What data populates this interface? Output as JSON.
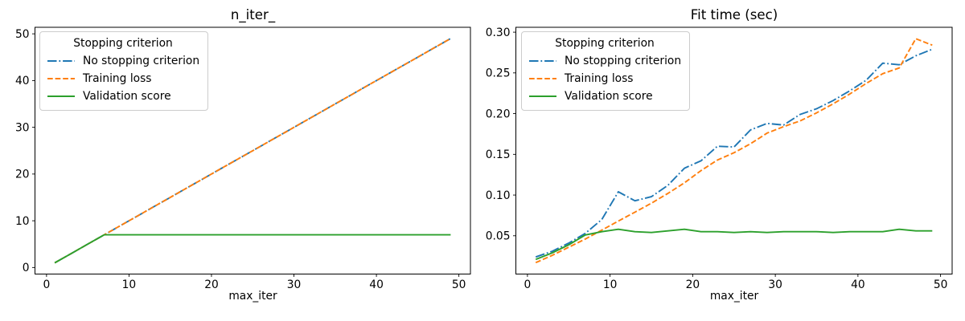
{
  "chart_data": [
    {
      "type": "line",
      "title": "n_iter_",
      "xlabel": "max_iter",
      "ylabel": "",
      "legend_title": "Stopping criterion",
      "legend_position": "upper left",
      "grid": false,
      "xlim": [
        -1.4,
        51.4
      ],
      "ylim": [
        -1.4,
        51.4
      ],
      "xticks": [
        0,
        10,
        20,
        30,
        40,
        50
      ],
      "xtick_labels": [
        "0",
        "10",
        "20",
        "30",
        "40",
        "50"
      ],
      "yticks": [
        0,
        10,
        20,
        30,
        40,
        50
      ],
      "ytick_labels": [
        "0",
        "10",
        "20",
        "30",
        "40",
        "50"
      ],
      "x": [
        1,
        3,
        5,
        7,
        9,
        11,
        13,
        15,
        17,
        19,
        21,
        23,
        25,
        27,
        29,
        31,
        33,
        35,
        37,
        39,
        41,
        43,
        45,
        47,
        49
      ],
      "series": [
        {
          "name": "No stopping criterion",
          "color": "#1f77b4",
          "linestyle": "dashdot",
          "values": [
            1,
            3,
            5,
            7,
            9,
            11,
            13,
            15,
            17,
            19,
            21,
            23,
            25,
            27,
            29,
            31,
            33,
            35,
            37,
            39,
            41,
            43,
            45,
            47,
            49
          ]
        },
        {
          "name": "Training loss",
          "color": "#ff7f0e",
          "linestyle": "dashed",
          "values": [
            1,
            3,
            5,
            7,
            9,
            11,
            13,
            15,
            17,
            19,
            21,
            23,
            25,
            27,
            29,
            31,
            33,
            35,
            37,
            39,
            41,
            43,
            45,
            47,
            49
          ]
        },
        {
          "name": "Validation score",
          "color": "#2ca02c",
          "linestyle": "solid",
          "values": [
            1,
            3,
            5,
            7,
            7,
            7,
            7,
            7,
            7,
            7,
            7,
            7,
            7,
            7,
            7,
            7,
            7,
            7,
            7,
            7,
            7,
            7,
            7,
            7,
            7
          ]
        }
      ]
    },
    {
      "type": "line",
      "title": "Fit time (sec)",
      "xlabel": "max_iter",
      "ylabel": "",
      "legend_title": "Stopping criterion",
      "legend_position": "upper left",
      "grid": false,
      "xlim": [
        -1.4,
        51.4
      ],
      "ylim": [
        0.003,
        0.306
      ],
      "xticks": [
        0,
        10,
        20,
        30,
        40,
        50
      ],
      "xtick_labels": [
        "0",
        "10",
        "20",
        "30",
        "40",
        "50"
      ],
      "yticks": [
        0.05,
        0.1,
        0.15,
        0.2,
        0.25,
        0.3
      ],
      "ytick_labels": [
        "0.05",
        "0.10",
        "0.15",
        "0.20",
        "0.25",
        "0.30"
      ],
      "x": [
        1,
        3,
        5,
        7,
        9,
        11,
        13,
        15,
        17,
        19,
        21,
        23,
        25,
        27,
        29,
        31,
        33,
        35,
        37,
        39,
        41,
        43,
        45,
        47,
        49
      ],
      "series": [
        {
          "name": "No stopping criterion",
          "color": "#1f77b4",
          "linestyle": "dashdot",
          "values": [
            0.024,
            0.031,
            0.041,
            0.053,
            0.07,
            0.104,
            0.093,
            0.098,
            0.112,
            0.133,
            0.142,
            0.16,
            0.159,
            0.18,
            0.188,
            0.186,
            0.199,
            0.206,
            0.216,
            0.228,
            0.241,
            0.262,
            0.26,
            0.271,
            0.279
          ]
        },
        {
          "name": "Training loss",
          "color": "#ff7f0e",
          "linestyle": "dashed",
          "values": [
            0.017,
            0.026,
            0.036,
            0.046,
            0.057,
            0.068,
            0.079,
            0.09,
            0.102,
            0.115,
            0.13,
            0.143,
            0.152,
            0.163,
            0.176,
            0.184,
            0.191,
            0.201,
            0.212,
            0.224,
            0.237,
            0.249,
            0.256,
            0.292,
            0.284
          ]
        },
        {
          "name": "Validation score",
          "color": "#2ca02c",
          "linestyle": "solid",
          "values": [
            0.021,
            0.029,
            0.039,
            0.051,
            0.055,
            0.058,
            0.055,
            0.054,
            0.056,
            0.058,
            0.055,
            0.055,
            0.054,
            0.055,
            0.054,
            0.055,
            0.055,
            0.055,
            0.054,
            0.055,
            0.055,
            0.055,
            0.058,
            0.056,
            0.056
          ]
        }
      ]
    }
  ]
}
